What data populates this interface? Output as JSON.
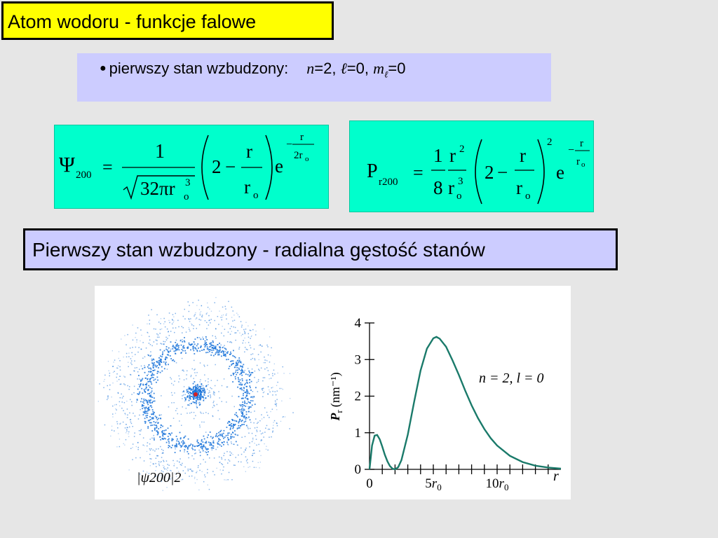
{
  "slide": {
    "title": "Atom wodoru - funkcje falowe",
    "bullet": {
      "text": "pierwszy stan wzbudzony:",
      "n_sym": "n",
      "n_val": "=2,",
      "l_sym": "ℓ",
      "l_val": "=0,",
      "m_sym": "m",
      "m_sub": "ℓ",
      "m_val": "=0"
    },
    "section_heading": "Pierwszy stan wzbudzony - radialna gęstość stanów"
  },
  "equation_psi": {
    "lhs": "Ψ",
    "lhs_sub": "200",
    "equals": "=",
    "numerator": "1",
    "den_main": "32πr",
    "den_sub": "o",
    "den_sup": "3",
    "paren_left": "2",
    "minus": "−",
    "frac_num": "r",
    "frac_den": "r",
    "frac_den_sub": "o",
    "exp_base": "e",
    "exp_minus": "−",
    "exp_num": "r",
    "exp_den": "2r",
    "exp_den_sub": "o"
  },
  "equation_pr": {
    "lhs": "P",
    "lhs_sub": "r200",
    "equals": "=",
    "coef_num": "1",
    "coef_den": "8",
    "r_num": "r",
    "r_num_sup": "2",
    "r_den": "r",
    "r_den_sub": "o",
    "r_den_sup": "3",
    "paren_left": "2",
    "minus": "−",
    "frac_num": "r",
    "frac_den": "r",
    "frac_den_sub": "o",
    "paren_sup": "2",
    "exp_base": "e",
    "exp_minus": "−",
    "exp_num": "r",
    "exp_den": "r",
    "exp_den_sub": "o"
  },
  "figure": {
    "cloud_label": "|ψ200|2",
    "colors": {
      "dots": "#1a73d9",
      "nucleus": "#d62020",
      "curve": "#1a7a6a"
    }
  },
  "chart_data": {
    "type": "line",
    "title": "",
    "xlabel": "r",
    "ylabel": "P_r (nm⁻¹)",
    "ylabel_main": "P",
    "ylabel_sub": "r",
    "ylabel_unit": "(nm⁻¹)",
    "annotation": "n = 2, l = 0",
    "xlim": [
      0,
      15
    ],
    "ylim": [
      0,
      4
    ],
    "x_ticks": [
      0,
      5,
      10
    ],
    "x_tick_labels": [
      "0",
      "5r0",
      "10r0"
    ],
    "y_ticks": [
      0,
      1,
      2,
      3,
      4
    ],
    "y_tick_labels": [
      "0",
      "1",
      "2",
      "3",
      "4"
    ],
    "series": [
      {
        "x": [
          0,
          0.2,
          0.4,
          0.6,
          0.8,
          1,
          1.2,
          1.4,
          1.6,
          1.8,
          2,
          2.25,
          2.5,
          3,
          3.5,
          4,
          4.5,
          5,
          5.24,
          5.5,
          6,
          6.5,
          7,
          7.5,
          8,
          8.5,
          9,
          9.5,
          10,
          11,
          12,
          13,
          14,
          15
        ],
        "y": [
          0,
          0.65,
          0.92,
          0.94,
          0.82,
          0.62,
          0.4,
          0.22,
          0.09,
          0.02,
          0,
          0.06,
          0.25,
          0.95,
          1.85,
          2.7,
          3.3,
          3.58,
          3.62,
          3.57,
          3.35,
          2.98,
          2.58,
          2.15,
          1.75,
          1.4,
          1.1,
          0.85,
          0.65,
          0.37,
          0.2,
          0.1,
          0.05,
          0.02
        ]
      }
    ]
  }
}
